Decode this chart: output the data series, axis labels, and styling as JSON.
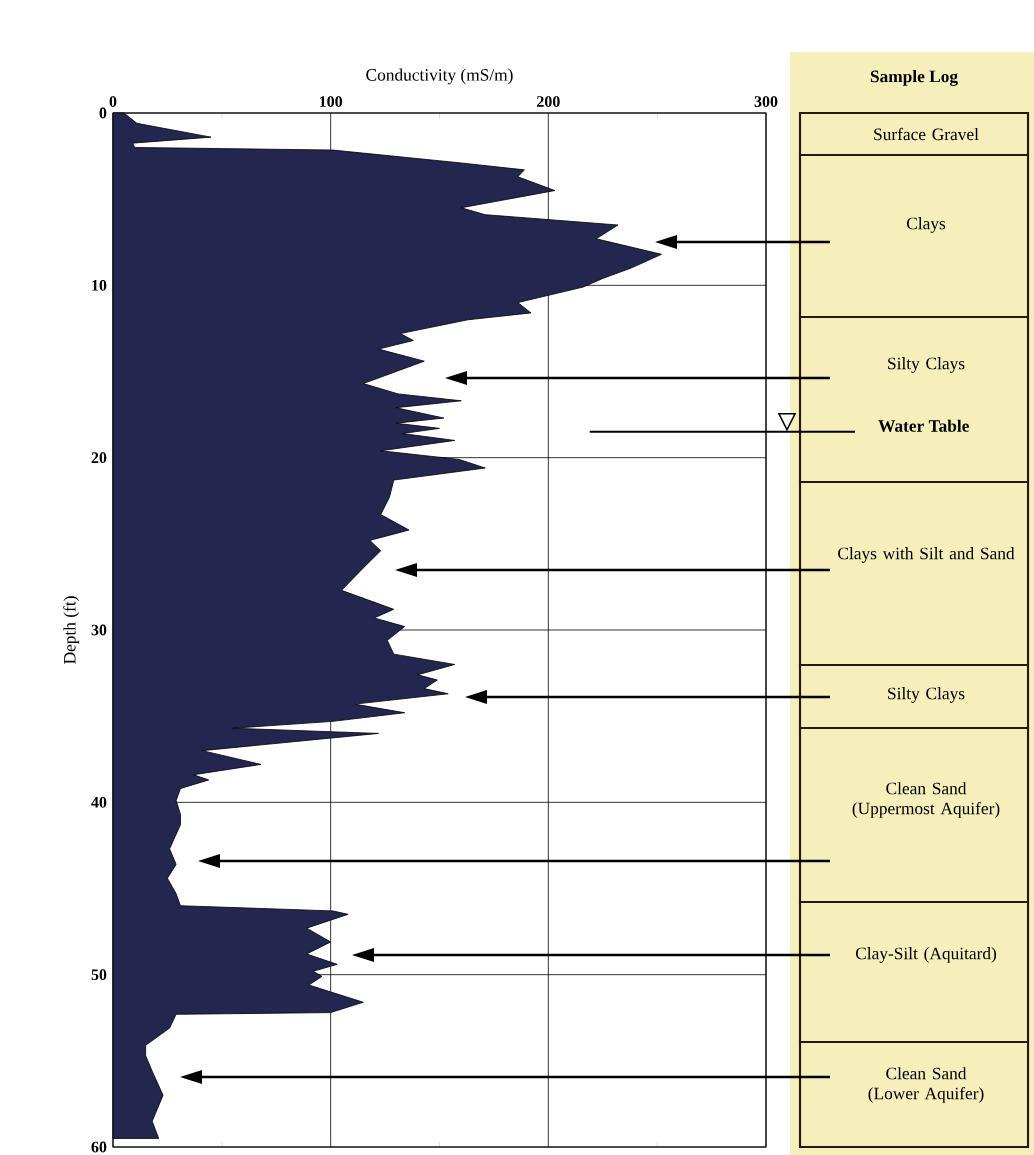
{
  "chart_data": {
    "type": "area",
    "orientation": "horizontal",
    "xlabel": "Conductivity (mS/m)",
    "ylabel": "Depth (ft)",
    "color": "#23264f",
    "x": [
      0,
      0.6,
      1.4,
      1.75,
      2.0,
      2.15,
      2.9,
      3.3,
      3.7,
      4.5,
      5.5,
      5.9,
      6.5,
      7.3,
      8.2,
      9.0,
      9.6,
      10.1,
      11.0,
      11.6,
      12.0,
      12.8,
      13.2,
      13.7,
      14.4,
      15.7,
      16.3,
      16.7,
      17.1,
      17.7,
      18.0,
      18.3,
      18.6,
      19.0,
      19.6,
      20.1,
      20.6,
      21.3,
      22.3,
      23.3,
      24.2,
      24.8,
      25.4,
      26.4,
      27.7,
      28.8,
      29.3,
      29.8,
      30.6,
      31.4,
      32.0,
      32.6,
      32.9,
      33.4,
      33.7,
      34.3,
      34.8,
      35.3,
      35.7,
      36.0,
      37.0,
      37.8,
      38.4,
      38.7,
      39.2,
      39.9,
      40.7,
      41.3,
      42.7,
      43.6,
      44.4,
      45.3,
      46.0,
      46.3,
      46.5,
      47.3,
      48.1,
      48.8,
      49.4,
      49.8,
      50.1,
      50.6,
      51.6,
      52.2,
      52.3,
      53.1,
      54.1,
      54.7,
      55.6,
      57.0,
      58.5,
      59.5
    ],
    "values": [
      5,
      11,
      45,
      9,
      10,
      101,
      160,
      189,
      186,
      203,
      160,
      171,
      232,
      222,
      252,
      238,
      225,
      216,
      186,
      192,
      163,
      132,
      138,
      122,
      143,
      115,
      131,
      160,
      130,
      152,
      130,
      150,
      133,
      157,
      123,
      159,
      171,
      129,
      127,
      123,
      136,
      118,
      123,
      115,
      105,
      129,
      120,
      134,
      126,
      129,
      157,
      140,
      149,
      143,
      154,
      111,
      134,
      101,
      55,
      122,
      41,
      68,
      37,
      44,
      31,
      29,
      31,
      31,
      26,
      29,
      25,
      29,
      31,
      101,
      108,
      89,
      100,
      89,
      103,
      92,
      96,
      90,
      115,
      100,
      29,
      26,
      15,
      15,
      18,
      23,
      18,
      21
    ],
    "xlim": [
      0,
      300
    ],
    "xticks": [
      0,
      100,
      200,
      300
    ],
    "ylim": [
      60,
      0
    ],
    "yticks": [
      0,
      10,
      20,
      30,
      40,
      50,
      60
    ],
    "grid": true,
    "ref_lines": [
      {
        "axis": "y",
        "value": 18.5,
        "label": "Water Table"
      }
    ],
    "annotations": [
      "Sample Log",
      "Surface Gravel",
      "Clays",
      "Silty Clays",
      "Clays with Silt and Sand",
      "Silty Clays",
      "Clean Sand (Uppermost Aquifer)",
      "Clay-Silt (Aquitard)",
      "Clean Sand (Lower Aquifer)"
    ]
  }
}
